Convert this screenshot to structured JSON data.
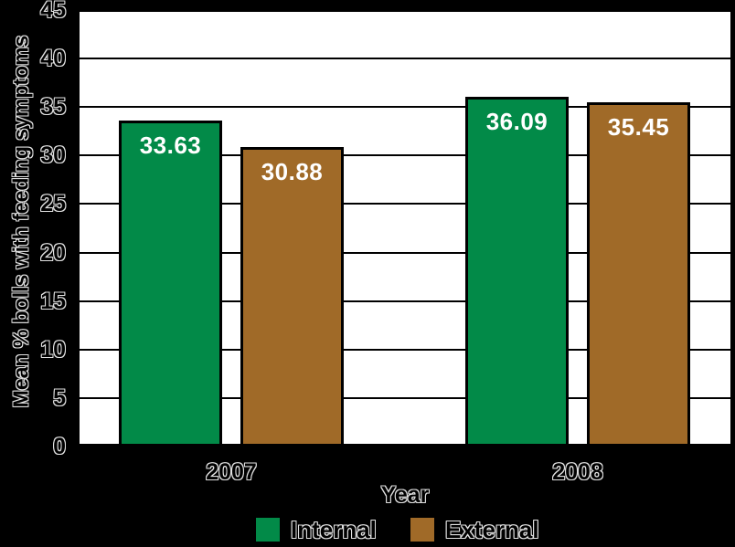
{
  "chart_data": {
    "type": "bar",
    "title": "",
    "xlabel": "Year",
    "ylabel": "Mean % bolls with feeding symptoms",
    "categories": [
      "2007",
      "2008"
    ],
    "series": [
      {
        "name": "Internal",
        "color": "#028A48",
        "values": [
          33.63,
          36.09
        ]
      },
      {
        "name": "External",
        "color": "#A06A28",
        "values": [
          30.88,
          35.45
        ]
      }
    ],
    "value_labels": [
      [
        "33.63",
        "36.09"
      ],
      [
        "30.88",
        "35.45"
      ]
    ],
    "ylim": [
      0,
      45
    ],
    "ytick_step": 5,
    "ytick_labels": [
      "0",
      "5",
      "10",
      "15",
      "20",
      "25",
      "30",
      "35",
      "40",
      "45"
    ],
    "grid": "horizontal",
    "legend_position": "bottom",
    "legend_entries": [
      "Internal",
      "External"
    ]
  },
  "colors": {
    "page_background": "#000000",
    "plot_background": "#FFFFFF",
    "gridline": "#000000",
    "bar_border": "#000000",
    "tick_text_fill": "#000000",
    "tick_text_outline": "#E2E2E2",
    "value_label_text": "#FFFFFF"
  }
}
